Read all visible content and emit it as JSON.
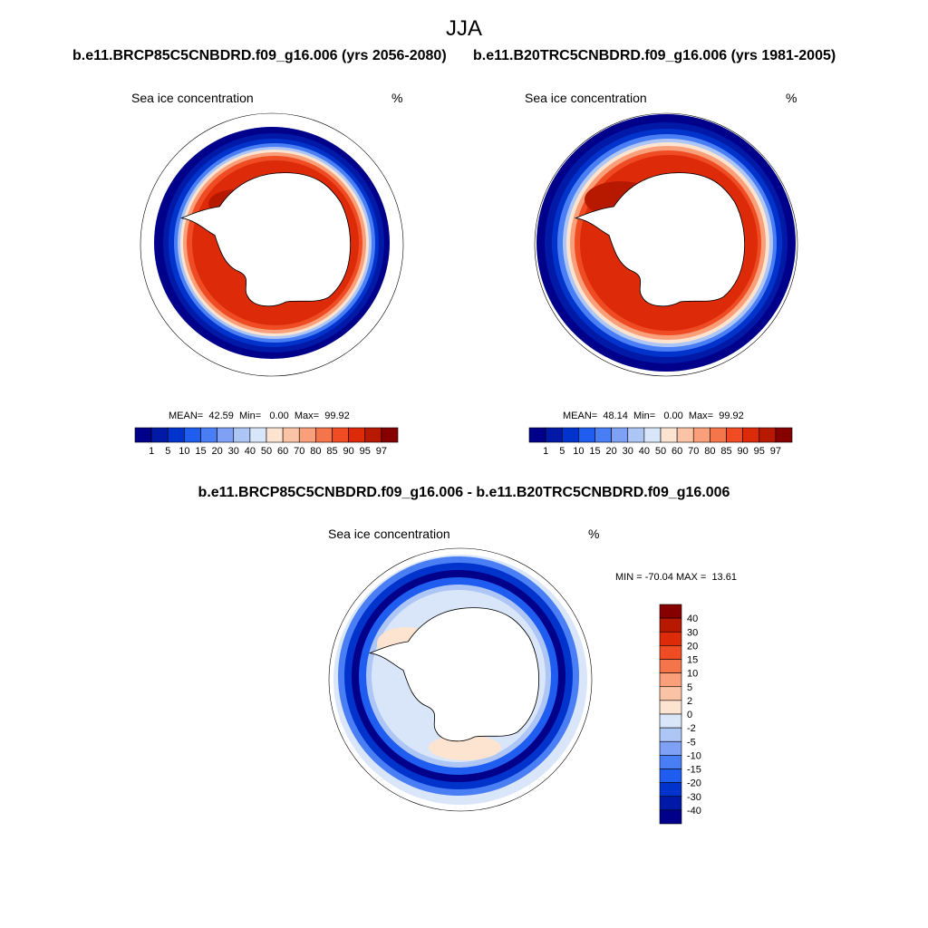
{
  "figure": {
    "title": "JJA",
    "diff_title": "b.e11.BRCP85C5CNBDRD.f09_g16.006 - b.e11.B20TRC5CNBDRD.f09_g16.006"
  },
  "colors": {
    "hbar": [
      "#00008a",
      "#0019a6",
      "#0033cc",
      "#1f5cf0",
      "#4a7ef5",
      "#7ea0f5",
      "#adc6f5",
      "#d9e6fa",
      "#fde4d0",
      "#fbc3a5",
      "#f9a07a",
      "#f5754a",
      "#ef4c24",
      "#dd2a08",
      "#b71800",
      "#870000"
    ],
    "vbar": [
      "#870000",
      "#b71800",
      "#dd2a08",
      "#ef4c24",
      "#f5754a",
      "#f9a07a",
      "#fbc3a5",
      "#fde4d0",
      "#d9e6fa",
      "#adc6f5",
      "#7ea0f5",
      "#4a7ef5",
      "#1f5cf0",
      "#0033cc",
      "#0019a6",
      "#00008a"
    ]
  },
  "chart_data": [
    {
      "type": "heatmap",
      "projection": "south-polar-stereographic",
      "title": "b.e11.BRCP85C5CNBDRD.f09_g16.006 (yrs 2056-2080)",
      "variable": "Sea ice concentration",
      "units": "%",
      "stats": {
        "mean_label": "MEAN=",
        "mean": "42.59",
        "min_label": "Min=",
        "min": "0.00",
        "max_label": "Max=",
        "max": "99.92"
      },
      "colorbar_levels": [
        "1",
        "5",
        "10",
        "15",
        "20",
        "30",
        "40",
        "50",
        "60",
        "70",
        "80",
        "85",
        "90",
        "95",
        "97"
      ],
      "ice_edge_deg_lat": -58
    },
    {
      "type": "heatmap",
      "projection": "south-polar-stereographic",
      "title": "b.e11.B20TRC5CNBDRD.f09_g16.006 (yrs 1981-2005)",
      "variable": "Sea ice concentration",
      "units": "%",
      "stats": {
        "mean_label": "MEAN=",
        "mean": "48.14",
        "min_label": "Min=",
        "min": "0.00",
        "max_label": "Max=",
        "max": "99.92"
      },
      "colorbar_levels": [
        "1",
        "5",
        "10",
        "15",
        "20",
        "30",
        "40",
        "50",
        "60",
        "70",
        "80",
        "85",
        "90",
        "95",
        "97"
      ],
      "ice_edge_deg_lat": -55
    },
    {
      "type": "heatmap",
      "projection": "south-polar-stereographic",
      "title": "b.e11.BRCP85C5CNBDRD.f09_g16.006 - b.e11.B20TRC5CNBDRD.f09_g16.006",
      "variable": "Sea ice concentration",
      "units": "%",
      "stats": {
        "min_label": "MIN =",
        "min": "-70.04",
        "max_label": "MAX =",
        "max": "13.61"
      },
      "colorbar_levels": [
        "40",
        "30",
        "20",
        "15",
        "10",
        "5",
        "2",
        "0",
        "-2",
        "-5",
        "-10",
        "-15",
        "-20",
        "-30",
        "-40"
      ]
    }
  ]
}
